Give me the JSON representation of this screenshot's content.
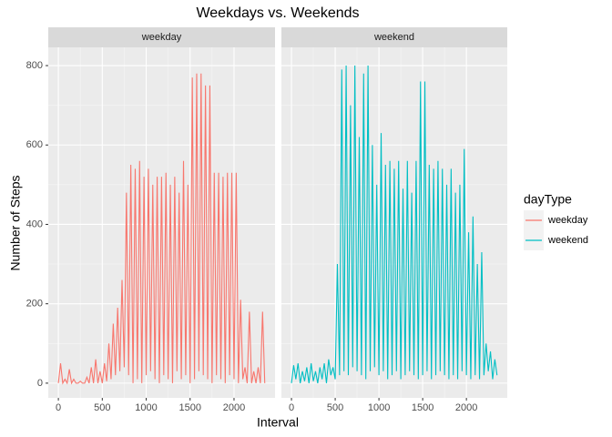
{
  "chart_data": {
    "type": "line",
    "title": "Weekdays vs. Weekends",
    "x_label": "Interval",
    "y_label": "Number of Steps",
    "legend_title": "dayType",
    "legend": "right",
    "grid": true,
    "x": [
      0,
      25,
      50,
      75,
      100,
      125,
      150,
      175,
      200,
      225,
      250,
      275,
      300,
      325,
      350,
      375,
      400,
      425,
      450,
      475,
      500,
      525,
      550,
      575,
      600,
      625,
      650,
      675,
      700,
      725,
      750,
      775,
      800,
      825,
      850,
      875,
      900,
      925,
      950,
      975,
      1000,
      1025,
      1050,
      1075,
      1100,
      1125,
      1150,
      1175,
      1200,
      1225,
      1250,
      1275,
      1300,
      1325,
      1350,
      1375,
      1400,
      1425,
      1450,
      1475,
      1500,
      1525,
      1550,
      1575,
      1600,
      1625,
      1650,
      1675,
      1700,
      1725,
      1750,
      1775,
      1800,
      1825,
      1850,
      1875,
      1900,
      1925,
      1950,
      1975,
      2000,
      2025,
      2050,
      2075,
      2100,
      2125,
      2150,
      2175,
      2200,
      2225,
      2250,
      2275,
      2300,
      2325,
      2350
    ],
    "series": [
      {
        "name": "weekday",
        "color": "#f8766d",
        "values": [
          0,
          50,
          0,
          10,
          0,
          35,
          0,
          10,
          0,
          0,
          5,
          0,
          0,
          15,
          0,
          40,
          0,
          60,
          0,
          30,
          0,
          50,
          5,
          100,
          10,
          150,
          20,
          190,
          30,
          260,
          40,
          480,
          20,
          550,
          0,
          540,
          10,
          560,
          0,
          520,
          20,
          540,
          30,
          500,
          10,
          520,
          0,
          520,
          20,
          530,
          10,
          500,
          0,
          520,
          30,
          480,
          10,
          560,
          20,
          500,
          0,
          770,
          10,
          780,
          30,
          780,
          20,
          750,
          10,
          750,
          0,
          530,
          20,
          530,
          10,
          520,
          0,
          530,
          20,
          530,
          10,
          530,
          0,
          210,
          10,
          40,
          0,
          180,
          0,
          30,
          0,
          40,
          0,
          180,
          0
        ]
      },
      {
        "name": "weekend",
        "color": "#00bfc4",
        "values": [
          0,
          45,
          10,
          50,
          0,
          30,
          5,
          40,
          0,
          50,
          5,
          30,
          0,
          40,
          10,
          50,
          0,
          60,
          20,
          40,
          10,
          300,
          20,
          790,
          30,
          800,
          20,
          700,
          40,
          800,
          30,
          620,
          20,
          780,
          10,
          800,
          30,
          600,
          40,
          500,
          20,
          630,
          30,
          550,
          10,
          560,
          20,
          540,
          30,
          560,
          10,
          490,
          20,
          560,
          30,
          480,
          20,
          560,
          10,
          760,
          20,
          760,
          30,
          550,
          10,
          540,
          20,
          560,
          30,
          540,
          20,
          500,
          10,
          540,
          20,
          480,
          10,
          500,
          30,
          590,
          20,
          380,
          10,
          420,
          20,
          300,
          10,
          330,
          20,
          100,
          30,
          80,
          10,
          60,
          20
        ]
      }
    ],
    "xlim": [
      -115,
      2467
    ],
    "xticks": [
      0,
      500,
      1000,
      1500,
      2000
    ],
    "ylim": [
      -37,
      846
    ],
    "yticks": [
      0,
      200,
      400,
      600,
      800
    ]
  }
}
